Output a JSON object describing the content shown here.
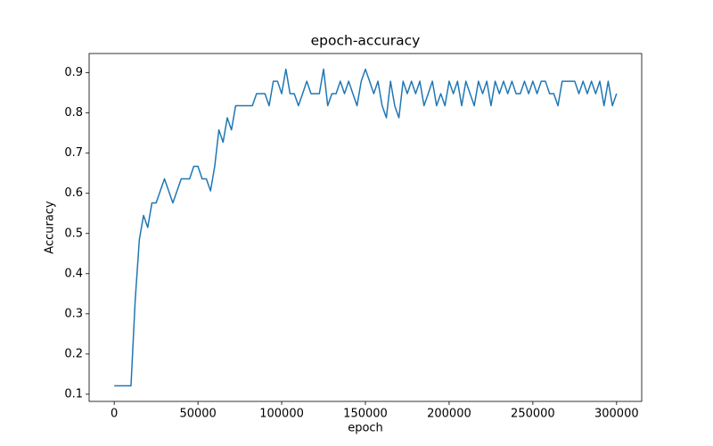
{
  "chart_data": {
    "type": "line",
    "title": "epoch-accuracy",
    "x_label": "epoch",
    "y_label": "Accuracy",
    "color": "#1f77b4",
    "x": [
      0,
      2500,
      5000,
      7500,
      10000,
      12500,
      15000,
      17500,
      20000,
      22500,
      25000,
      27500,
      30000,
      32500,
      35000,
      37500,
      40000,
      42500,
      45000,
      47500,
      50000,
      52500,
      55000,
      57500,
      60000,
      62500,
      65000,
      67500,
      70000,
      72500,
      75000,
      77500,
      80000,
      82500,
      85000,
      87500,
      90000,
      92500,
      95000,
      97500,
      100000,
      102500,
      105000,
      107500,
      110000,
      112500,
      115000,
      117500,
      120000,
      122500,
      125000,
      127500,
      130000,
      132500,
      135000,
      137500,
      140000,
      142500,
      145000,
      147500,
      150000,
      152500,
      155000,
      157500,
      160000,
      162500,
      165000,
      167500,
      170000,
      172500,
      175000,
      177500,
      180000,
      182500,
      185000,
      187500,
      190000,
      192500,
      195000,
      197500,
      200000,
      202500,
      205000,
      207500,
      210000,
      212500,
      215000,
      217500,
      220000,
      222500,
      225000,
      227500,
      230000,
      232500,
      235000,
      237500,
      240000,
      242500,
      245000,
      247500,
      250000,
      252500,
      255000,
      257500,
      260000,
      262500,
      265000,
      267500,
      270000,
      272500,
      275000,
      277500,
      280000,
      282500,
      285000,
      287500,
      290000,
      292500,
      295000,
      297500,
      300000
    ],
    "values": [
      0.121,
      0.121,
      0.121,
      0.121,
      0.121,
      0.333,
      0.485,
      0.545,
      0.515,
      0.576,
      0.576,
      0.606,
      0.636,
      0.606,
      0.576,
      0.606,
      0.636,
      0.636,
      0.636,
      0.667,
      0.667,
      0.636,
      0.636,
      0.606,
      0.667,
      0.758,
      0.727,
      0.788,
      0.758,
      0.818,
      0.818,
      0.818,
      0.818,
      0.818,
      0.848,
      0.848,
      0.848,
      0.818,
      0.879,
      0.879,
      0.848,
      0.909,
      0.848,
      0.848,
      0.818,
      0.848,
      0.879,
      0.848,
      0.848,
      0.848,
      0.909,
      0.818,
      0.848,
      0.848,
      0.879,
      0.848,
      0.879,
      0.848,
      0.818,
      0.879,
      0.909,
      0.879,
      0.848,
      0.879,
      0.818,
      0.788,
      0.879,
      0.818,
      0.788,
      0.879,
      0.848,
      0.879,
      0.848,
      0.879,
      0.818,
      0.848,
      0.879,
      0.818,
      0.848,
      0.818,
      0.879,
      0.848,
      0.879,
      0.818,
      0.879,
      0.848,
      0.818,
      0.879,
      0.848,
      0.879,
      0.818,
      0.879,
      0.848,
      0.879,
      0.848,
      0.879,
      0.848,
      0.848,
      0.879,
      0.848,
      0.879,
      0.848,
      0.879,
      0.879,
      0.848,
      0.848,
      0.818,
      0.879,
      0.879,
      0.879,
      0.879,
      0.848,
      0.879,
      0.848,
      0.879,
      0.848,
      0.879,
      0.818,
      0.879,
      0.818,
      0.848
    ],
    "xlim": [
      -15000,
      315000
    ],
    "ylim": [
      0.082,
      0.948
    ],
    "xticks": [
      0,
      50000,
      100000,
      150000,
      200000,
      250000,
      300000
    ],
    "yticks": [
      0.1,
      0.2,
      0.3,
      0.4,
      0.5,
      0.6,
      0.7,
      0.8,
      0.9
    ]
  }
}
